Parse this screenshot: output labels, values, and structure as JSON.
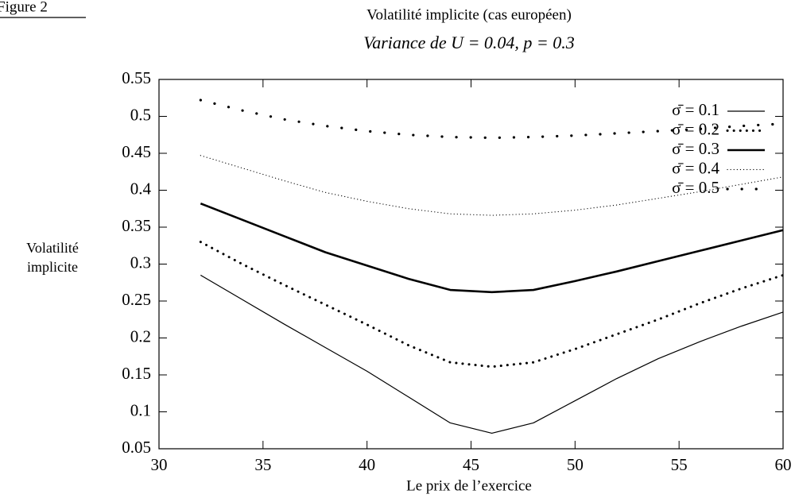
{
  "figure_label": "Figure 2",
  "chart_data": {
    "type": "line",
    "title": "Volatilité implicite (cas européen)",
    "subtitle": "Variance de U = 0.04, p = 0.3",
    "y_label": [
      "Volatilité",
      "implicite"
    ],
    "x_label": "Le prix de l’exercice",
    "x": [
      32,
      34,
      36,
      38,
      40,
      42,
      44,
      46,
      48,
      50,
      52,
      54,
      56,
      58,
      60
    ],
    "series": [
      {
        "name": "σ̄ = 0.1",
        "color": "#000000",
        "width": 1.2,
        "dash": "none",
        "values": [
          0.285,
          0.252,
          0.219,
          0.187,
          0.155,
          0.12,
          0.085,
          0.071,
          0.085,
          0.115,
          0.145,
          0.172,
          0.195,
          0.216,
          0.235
        ]
      },
      {
        "name": "σ̄ = 0.2",
        "color": "#000000",
        "width": 3,
        "dash": "0.1,8",
        "values": [
          0.33,
          0.3,
          0.272,
          0.245,
          0.218,
          0.19,
          0.167,
          0.161,
          0.167,
          0.185,
          0.205,
          0.225,
          0.247,
          0.267,
          0.285
        ]
      },
      {
        "name": "σ̄ = 0.3",
        "color": "#000000",
        "width": 2.6,
        "dash": "none",
        "values": [
          0.382,
          0.36,
          0.338,
          0.316,
          0.298,
          0.28,
          0.265,
          0.262,
          0.265,
          0.277,
          0.29,
          0.304,
          0.318,
          0.332,
          0.346
        ]
      },
      {
        "name": "σ̄ = 0.4",
        "color": "#000000",
        "width": 1.2,
        "dash": "0.1,4",
        "values": [
          0.447,
          0.43,
          0.413,
          0.397,
          0.385,
          0.375,
          0.368,
          0.366,
          0.368,
          0.373,
          0.38,
          0.389,
          0.398,
          0.408,
          0.418
        ]
      },
      {
        "name": "σ̄ = 0.5",
        "color": "#000000",
        "width": 3.2,
        "dash": "0.1,18",
        "values": [
          0.522,
          0.508,
          0.496,
          0.487,
          0.48,
          0.475,
          0.472,
          0.471,
          0.472,
          0.474,
          0.477,
          0.48,
          0.483,
          0.487,
          0.49
        ]
      }
    ],
    "xlim": [
      30,
      60
    ],
    "xticks": [
      30,
      35,
      40,
      45,
      50,
      55,
      60
    ],
    "ylim": [
      0.05,
      0.55
    ],
    "yticks": [
      0.05,
      0.1,
      0.15,
      0.2,
      0.25,
      0.3,
      0.35,
      0.4,
      0.45,
      0.5,
      0.55
    ],
    "legend": "top-right"
  }
}
